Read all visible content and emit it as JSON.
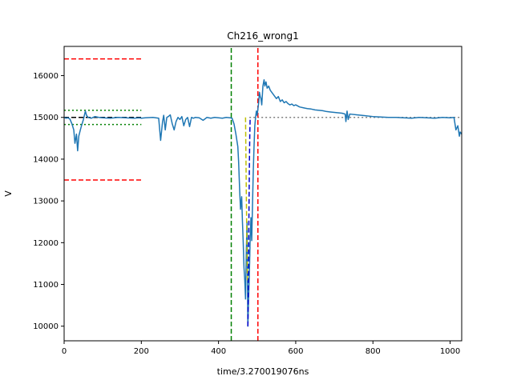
{
  "chart_data": {
    "type": "line",
    "title": "Ch216_wrong1",
    "xlabel": "time/3.270019076ns",
    "ylabel": "V",
    "xlim": [
      0,
      1030
    ],
    "ylim": [
      9650,
      16700
    ],
    "xticks": [
      0,
      200,
      400,
      600,
      800,
      1000
    ],
    "yticks": [
      10000,
      11000,
      12000,
      13000,
      14000,
      15000,
      16000
    ],
    "grid": false,
    "series": [
      {
        "color": "#1f77b4",
        "x": [
          0,
          5,
          10,
          15,
          20,
          25,
          28,
          32,
          35,
          38,
          42,
          45,
          50,
          55,
          58,
          62,
          70,
          80,
          90,
          100,
          120,
          140,
          160,
          180,
          195,
          200,
          210,
          230,
          245,
          250,
          255,
          258,
          262,
          266,
          270,
          275,
          280,
          285,
          290,
          295,
          300,
          305,
          310,
          315,
          320,
          325,
          330,
          335,
          340,
          350,
          360,
          370,
          380,
          390,
          400,
          410,
          420,
          430,
          435,
          440,
          445,
          450,
          452,
          455,
          457,
          460,
          462,
          464,
          466,
          468,
          470,
          472,
          474,
          476,
          478,
          480,
          482,
          484,
          486,
          488,
          490,
          492,
          494,
          496,
          498,
          500,
          502,
          504,
          506,
          508,
          510,
          512,
          515,
          518,
          520,
          523,
          526,
          530,
          534,
          538,
          542,
          546,
          550,
          555,
          560,
          565,
          570,
          575,
          580,
          585,
          590,
          595,
          600,
          610,
          620,
          630,
          640,
          650,
          660,
          670,
          680,
          690,
          700,
          710,
          720,
          728,
          730,
          733,
          736,
          740,
          760,
          780,
          800,
          820,
          840,
          860,
          880,
          900,
          920,
          940,
          960,
          980,
          1000,
          1010,
          1015,
          1020,
          1024,
          1026,
          1030
        ],
        "y": [
          15000,
          14980,
          14990,
          14960,
          14850,
          14700,
          14380,
          14600,
          14200,
          14550,
          14700,
          14800,
          14950,
          15150,
          15050,
          15000,
          14980,
          15020,
          15000,
          14990,
          14980,
          15000,
          14990,
          14980,
          14990,
          14980,
          14990,
          15000,
          14980,
          14450,
          14900,
          15050,
          14700,
          15000,
          15020,
          15060,
          14850,
          14700,
          14900,
          15000,
          14950,
          15020,
          14800,
          14950,
          15000,
          14780,
          15000,
          14980,
          15000,
          14990,
          14930,
          15000,
          14980,
          15000,
          14990,
          14980,
          15000,
          14990,
          14980,
          14850,
          14600,
          14300,
          13950,
          13200,
          12800,
          13100,
          12500,
          12000,
          11400,
          11100,
          10650,
          11800,
          12500,
          10000,
          10700,
          11300,
          12100,
          12600,
          12050,
          12900,
          13700,
          14300,
          14800,
          15000,
          15150,
          15050,
          15200,
          15350,
          15600,
          15500,
          15450,
          15300,
          15750,
          15900,
          15750,
          15850,
          15700,
          15750,
          15650,
          15600,
          15550,
          15500,
          15450,
          15500,
          15380,
          15420,
          15350,
          15380,
          15330,
          15300,
          15320,
          15280,
          15300,
          15250,
          15230,
          15210,
          15200,
          15180,
          15170,
          15160,
          15140,
          15130,
          15120,
          15110,
          15100,
          15080,
          14900,
          15150,
          14950,
          15080,
          15060,
          15040,
          15020,
          15010,
          15000,
          15000,
          14990,
          14980,
          15000,
          14990,
          14980,
          15000,
          14990,
          15000,
          14700,
          14800,
          14550,
          14650,
          14600
        ]
      }
    ],
    "reference_lines": [
      {
        "orientation": "horizontal",
        "y": 16400,
        "x_range": [
          0,
          200
        ],
        "color": "#ff0000",
        "dash": "dashed"
      },
      {
        "orientation": "horizontal",
        "y": 13500,
        "x_range": [
          0,
          200
        ],
        "color": "#ff0000",
        "dash": "dashed"
      },
      {
        "orientation": "horizontal",
        "y": 15170,
        "x_range": [
          0,
          200
        ],
        "color": "#008000",
        "dash": "dotted"
      },
      {
        "orientation": "horizontal",
        "y": 14830,
        "x_range": [
          0,
          200
        ],
        "color": "#008000",
        "dash": "dotted"
      },
      {
        "orientation": "horizontal",
        "y": 15000,
        "x_range": [
          0,
          200
        ],
        "color": "#000000",
        "dash": "dashed"
      },
      {
        "orientation": "horizontal",
        "y": 15000,
        "x_range": [
          480,
          1030
        ],
        "color": "#808080",
        "dash": "dotted"
      },
      {
        "orientation": "vertical",
        "x": 433,
        "y_range": [
          9650,
          16700
        ],
        "color": "#008000",
        "dash": "dashed"
      },
      {
        "orientation": "vertical",
        "x": 502,
        "y_range": [
          9650,
          16700
        ],
        "color": "#ff0000",
        "dash": "dashed"
      }
    ],
    "fit_curves": [
      {
        "color": "#bfbf00",
        "dash": "dashed",
        "x": [
          470,
          471,
          472,
          473,
          474,
          475
        ],
        "y": [
          15000,
          14100,
          13200,
          12400,
          11700,
          11100
        ]
      },
      {
        "color": "#0000cc",
        "dash": "dashed",
        "x": [
          476,
          477,
          478,
          479,
          480,
          481,
          482
        ],
        "y": [
          10000,
          10700,
          11700,
          12900,
          13900,
          14600,
          15000
        ]
      }
    ]
  }
}
